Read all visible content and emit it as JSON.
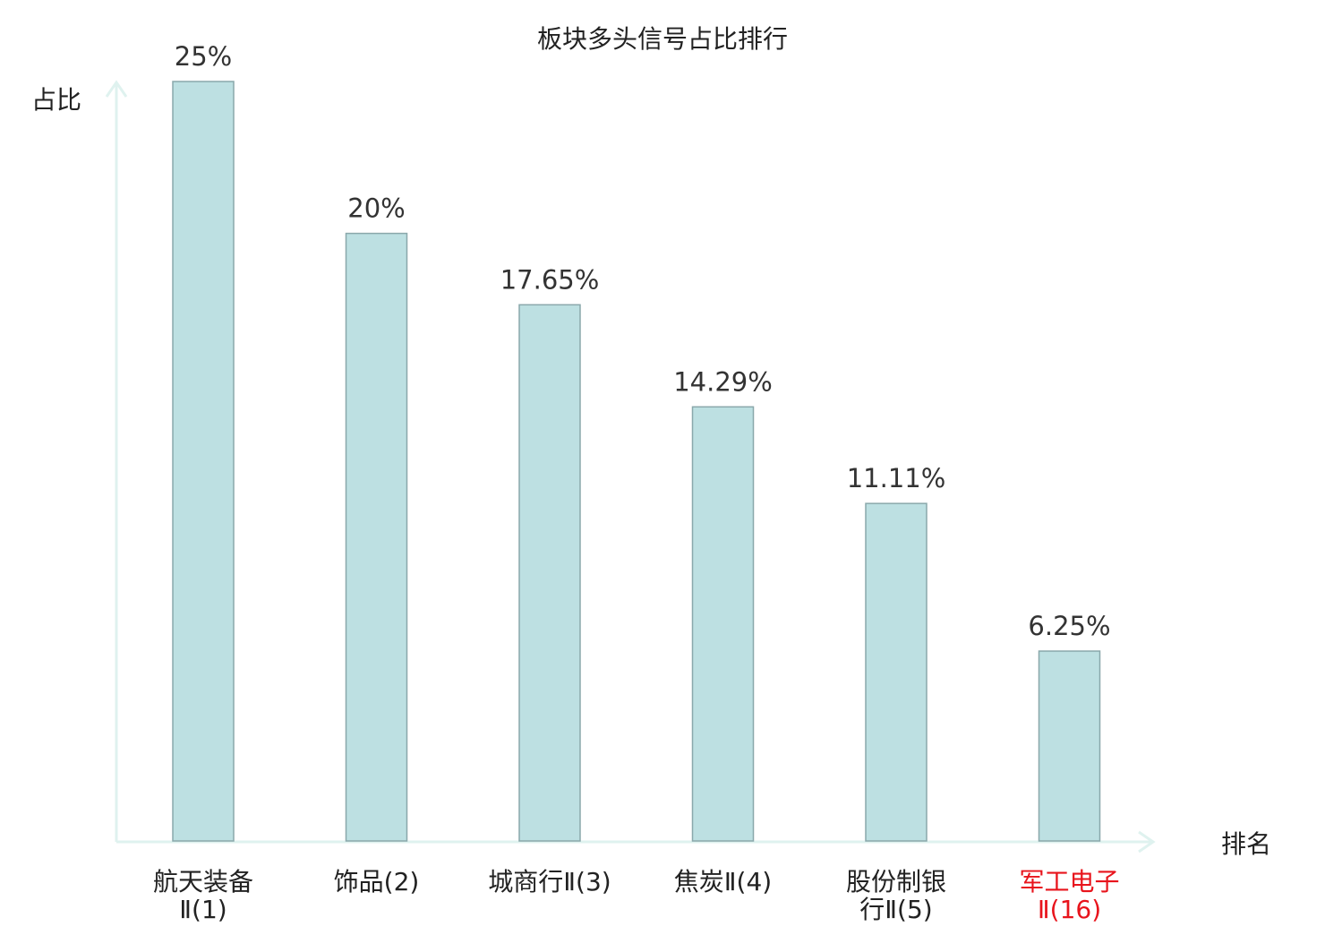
{
  "chart_data": {
    "type": "bar",
    "title": "板块多头信号占比排行",
    "ylabel": "占比",
    "xlabel": "排名",
    "categories": [
      {
        "label": [
          "航天装备",
          "Ⅱ(1)"
        ],
        "highlight": false
      },
      {
        "label": [
          "饰品(2)"
        ],
        "highlight": false
      },
      {
        "label": [
          "城商行Ⅱ(3)"
        ],
        "highlight": false
      },
      {
        "label": [
          "焦炭Ⅱ(4)"
        ],
        "highlight": false
      },
      {
        "label": [
          "股份制银",
          "行Ⅱ(5)"
        ],
        "highlight": false
      },
      {
        "label": [
          "军工电子",
          "Ⅱ(16)"
        ],
        "highlight": true
      }
    ],
    "values": [
      25,
      20,
      17.65,
      14.29,
      11.11,
      6.25
    ],
    "value_labels": [
      "25%",
      "20%",
      "17.65%",
      "14.29%",
      "11.11%",
      "6.25%"
    ],
    "ylim": [
      0,
      25
    ],
    "grid": false,
    "legend": "none",
    "colors": {
      "bar_fill": "#bde0e2",
      "bar_stroke": "#8aa8ab",
      "axis": "#dff2ef",
      "text": "#222222",
      "value_text": "#333333",
      "highlight_text": "#e8141c"
    }
  }
}
